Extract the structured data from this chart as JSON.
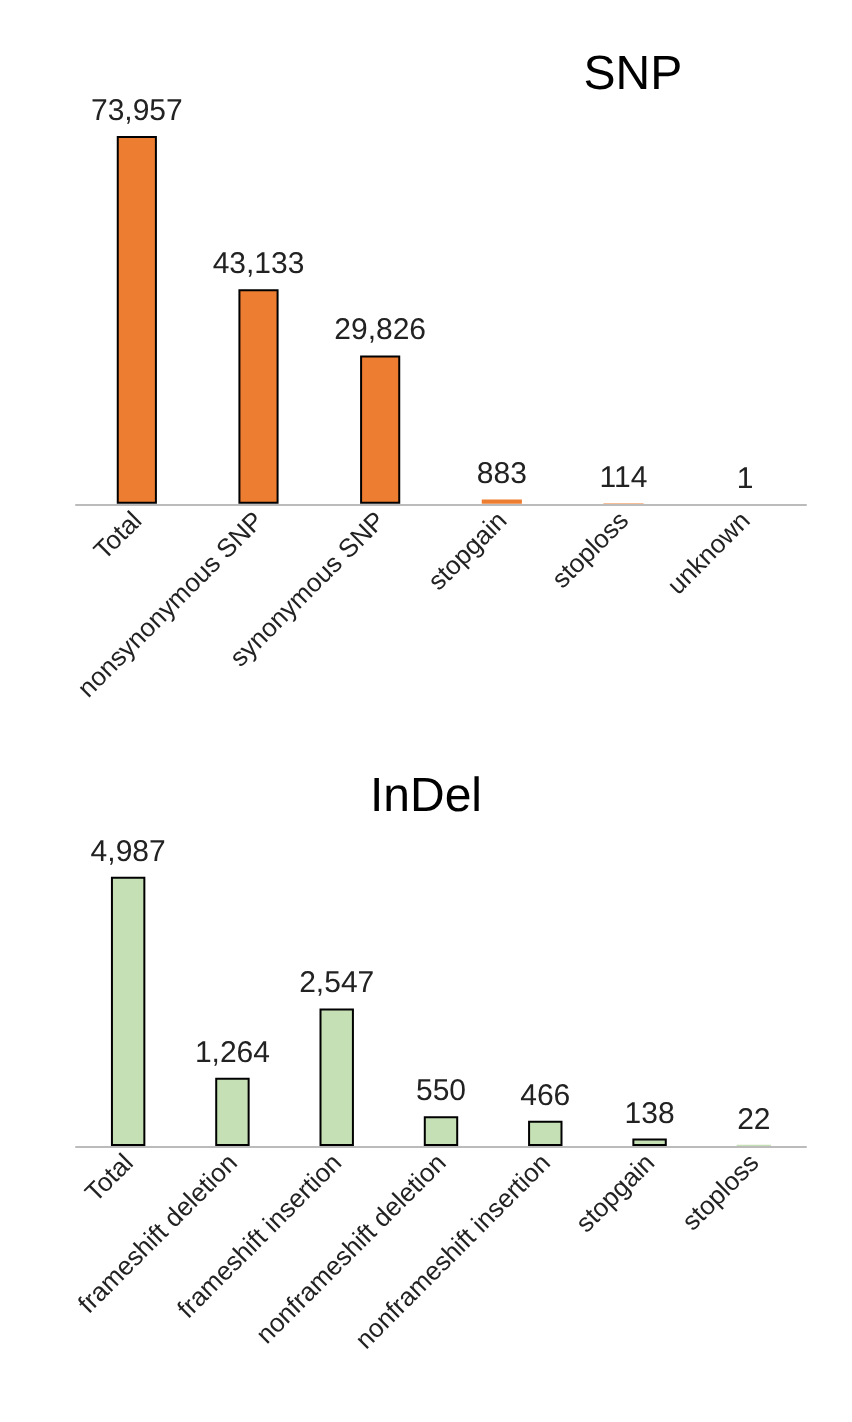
{
  "chart_data": [
    {
      "type": "bar",
      "title": "SNP",
      "categories": [
        "Total",
        "nonsynonymous SNP",
        "synonymous SNP",
        "stopgain",
        "stoploss",
        "unknown"
      ],
      "values": [
        73957,
        43133,
        29826,
        883,
        114,
        1
      ],
      "value_labels": [
        "73,957",
        "43,133",
        "29,826",
        "883",
        "114",
        "1"
      ],
      "color": "#ed7d31"
    },
    {
      "type": "bar",
      "title": "InDel",
      "categories": [
        "Total",
        "frameshift deletion",
        "frameshift insertion",
        "nonframeshift deletion",
        "nonframeshift insertion",
        "stopgain",
        "stoploss"
      ],
      "values": [
        4987,
        1264,
        2547,
        550,
        466,
        138,
        22
      ],
      "value_labels": [
        "4,987",
        "1,264",
        "2,547",
        "550",
        "466",
        "138",
        "22"
      ],
      "color": "#c5e0b4"
    }
  ]
}
